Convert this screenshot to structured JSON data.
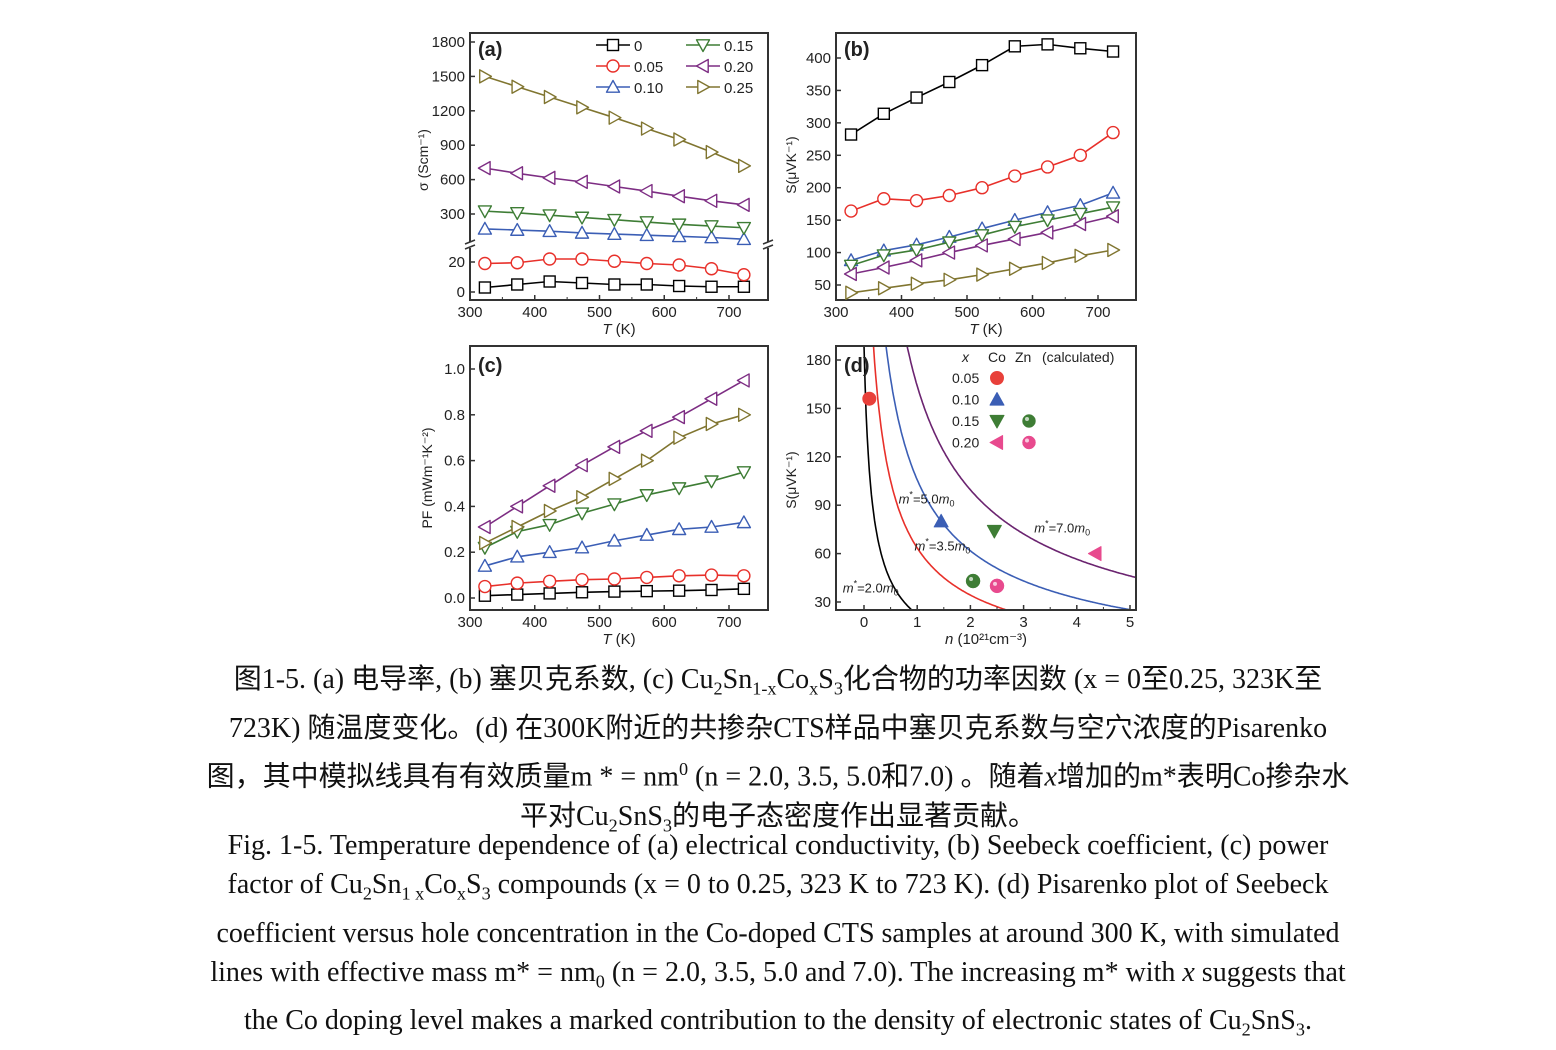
{
  "chart_data": [
    {
      "id": "a",
      "type": "line",
      "panel_label": "(a)",
      "xlabel_italic": "T",
      "xlabel_unit": " (K)",
      "ylabel": "σ (Scm⁻¹)",
      "xlim": [
        300,
        740
      ],
      "xticks": [
        300,
        400,
        500,
        600,
        700
      ],
      "axis_break": true,
      "ylim_lower": [
        0,
        28
      ],
      "ylim_upper": [
        0,
        1800
      ],
      "yticks_lower": [
        0,
        20
      ],
      "yticks_upper": [
        300,
        600,
        900,
        1200,
        1500,
        1800
      ],
      "legend": {
        "placement": "top-right",
        "columns": 2
      },
      "x": [
        323,
        373,
        423,
        473,
        523,
        573,
        623,
        673,
        723
      ],
      "series": [
        {
          "name": "0",
          "marker": "square",
          "color": "#000000",
          "segment": "lower",
          "values": [
            3,
            5,
            7,
            6,
            5,
            5,
            4,
            3.5,
            3.5
          ]
        },
        {
          "name": "0.05",
          "marker": "circle",
          "color": "#e8302a",
          "segment": "lower",
          "values": [
            19,
            19.5,
            22,
            22,
            20.5,
            19,
            18,
            15.5,
            11.5
          ]
        },
        {
          "name": "0.10",
          "marker": "triangle-up",
          "color": "#3b5eb5",
          "segment": "upper",
          "values": [
            170,
            160,
            150,
            135,
            125,
            115,
            105,
            95,
            80
          ]
        },
        {
          "name": "0.15",
          "marker": "triangle-down",
          "color": "#3e7d35",
          "segment": "upper",
          "values": [
            325,
            310,
            290,
            270,
            250,
            230,
            210,
            195,
            180
          ]
        },
        {
          "name": "0.20",
          "marker": "triangle-left",
          "color": "#7d2d83",
          "segment": "upper",
          "values": [
            700,
            655,
            615,
            580,
            540,
            500,
            455,
            415,
            380
          ]
        },
        {
          "name": "0.25",
          "marker": "triangle-right",
          "color": "#807530",
          "segment": "upper",
          "values": [
            1500,
            1410,
            1320,
            1230,
            1140,
            1045,
            950,
            840,
            720
          ]
        }
      ]
    },
    {
      "id": "b",
      "type": "line",
      "panel_label": "(b)",
      "xlabel_italic": "T",
      "xlabel_unit": " (K)",
      "ylabel": "S(μVK⁻¹)",
      "xlim": [
        300,
        740
      ],
      "ylim": [
        30,
        430
      ],
      "xticks": [
        300,
        400,
        500,
        600,
        700
      ],
      "yticks": [
        50,
        100,
        150,
        200,
        250,
        300,
        350,
        400
      ],
      "x": [
        323,
        373,
        423,
        473,
        523,
        573,
        623,
        673,
        723
      ],
      "series": [
        {
          "name": "0",
          "marker": "square",
          "color": "#000000",
          "values": [
            282,
            314,
            339,
            363,
            389,
            418,
            421,
            415,
            410
          ]
        },
        {
          "name": "0.05",
          "marker": "circle",
          "color": "#e8302a",
          "values": [
            164,
            183,
            180,
            188,
            200,
            218,
            232,
            250,
            285
          ]
        },
        {
          "name": "0.10",
          "marker": "triangle-up",
          "color": "#3b5eb5",
          "values": [
            88,
            103,
            112,
            124,
            137,
            150,
            162,
            173,
            192
          ]
        },
        {
          "name": "0.15",
          "marker": "triangle-down",
          "color": "#3e7d35",
          "values": [
            80,
            96,
            104,
            116,
            127,
            140,
            150,
            160,
            170
          ]
        },
        {
          "name": "0.20",
          "marker": "triangle-left",
          "color": "#7d2d83",
          "values": [
            67,
            77,
            88,
            100,
            111,
            121,
            131,
            144,
            156
          ]
        },
        {
          "name": "0.25",
          "marker": "triangle-right",
          "color": "#807530",
          "values": [
            38,
            45,
            52,
            58,
            66,
            75,
            84,
            95,
            104
          ]
        }
      ]
    },
    {
      "id": "c",
      "type": "line",
      "panel_label": "(c)",
      "xlabel_italic": "T",
      "xlabel_unit": " (K)",
      "ylabel": "PF (mWm⁻¹K⁻²)",
      "xlim": [
        300,
        740
      ],
      "ylim": [
        -0.05,
        1.1
      ],
      "xticks": [
        300,
        400,
        500,
        600,
        700
      ],
      "yticks": [
        0.0,
        0.2,
        0.4,
        0.6,
        0.8,
        1.0
      ],
      "x": [
        323,
        373,
        423,
        473,
        523,
        573,
        623,
        673,
        723
      ],
      "series": [
        {
          "name": "0",
          "marker": "square",
          "color": "#000000",
          "values": [
            0.01,
            0.015,
            0.02,
            0.025,
            0.028,
            0.03,
            0.032,
            0.035,
            0.04
          ]
        },
        {
          "name": "0.05",
          "marker": "circle",
          "color": "#e8302a",
          "values": [
            0.05,
            0.065,
            0.073,
            0.08,
            0.083,
            0.09,
            0.097,
            0.1,
            0.097
          ]
        },
        {
          "name": "0.10",
          "marker": "triangle-up",
          "color": "#3b5eb5",
          "values": [
            0.14,
            0.18,
            0.2,
            0.22,
            0.25,
            0.275,
            0.3,
            0.31,
            0.33
          ]
        },
        {
          "name": "0.15",
          "marker": "triangle-down",
          "color": "#3e7d35",
          "values": [
            0.22,
            0.29,
            0.32,
            0.37,
            0.41,
            0.45,
            0.48,
            0.51,
            0.55
          ]
        },
        {
          "name": "0.20",
          "marker": "triangle-left",
          "color": "#7d2d83",
          "values": [
            0.31,
            0.4,
            0.49,
            0.58,
            0.66,
            0.73,
            0.79,
            0.87,
            0.95
          ]
        },
        {
          "name": "0.25",
          "marker": "triangle-right",
          "color": "#807530",
          "values": [
            0.24,
            0.31,
            0.38,
            0.44,
            0.52,
            0.6,
            0.7,
            0.76,
            0.8
          ]
        }
      ]
    },
    {
      "id": "d",
      "type": "scatter",
      "panel_label": "(d)",
      "xlabel_italic": "n",
      "xlabel_unit": " (10²¹cm⁻³)",
      "ylabel": "S(μVK⁻¹)",
      "xlim": [
        -0.5,
        5
      ],
      "ylim": [
        25,
        185
      ],
      "xticks": [
        0,
        1,
        2,
        3,
        4,
        5
      ],
      "yticks": [
        30,
        60,
        90,
        120,
        150,
        180
      ],
      "legend": {
        "placement": "top-right",
        "header": [
          "x",
          "Co",
          "Zn",
          "(calculated)"
        ],
        "rows": [
          {
            "x": "0.05",
            "co": "circle",
            "zn": null,
            "color": "#e8403a"
          },
          {
            "x": "0.10",
            "co": "triangle-up",
            "zn": null,
            "color": "#3b5eb5"
          },
          {
            "x": "0.15",
            "co": "triangle-down",
            "zn": "sphere",
            "color": "#3e7d35"
          },
          {
            "x": "0.20",
            "co": "triangle-left",
            "zn": "sphere",
            "color": "#e84a8e"
          }
        ]
      },
      "points": [
        {
          "label": "Co 0.05",
          "marker": "circle",
          "color": "#e8403a",
          "x": 0.1,
          "y": 156
        },
        {
          "label": "Co 0.10",
          "marker": "triangle-up",
          "color": "#3b5eb5",
          "x": 1.45,
          "y": 80
        },
        {
          "label": "Co 0.15",
          "marker": "triangle-down",
          "color": "#3e7d35",
          "x": 2.45,
          "y": 74
        },
        {
          "label": "Co 0.20",
          "marker": "triangle-left",
          "color": "#e84a8e",
          "x": 4.35,
          "y": 60
        },
        {
          "label": "Zn 0.15",
          "marker": "sphere",
          "color": "#3e7d35",
          "x": 2.05,
          "y": 43
        },
        {
          "label": "Zn 0.20",
          "marker": "sphere",
          "color": "#e84a8e",
          "x": 2.5,
          "y": 40
        }
      ],
      "curves": [
        {
          "name": "m*=2.0m0",
          "label_prefix": "m*",
          "label_value": "=2.0m",
          "label_sub": "0",
          "color": "#000000",
          "k": 45,
          "x0": 0.1,
          "label_at": [
            -0.4,
            36
          ]
        },
        {
          "name": "m*=3.5m0",
          "label_prefix": "m*",
          "label_value": "=3.5m",
          "label_sub": "0",
          "color": "#e8302a",
          "k": 89,
          "x0": 0.1,
          "label_at": [
            0.95,
            62
          ]
        },
        {
          "name": "m*=5.0m0",
          "label_prefix": "m*",
          "label_value": "=5.0m",
          "label_sub": "0",
          "color": "#3b5eb5",
          "k": 134,
          "x0": 0.1,
          "label_at": [
            0.65,
            91
          ]
        },
        {
          "name": "m*=7.0m0",
          "label_prefix": "m*",
          "label_value": "=7.0m",
          "label_sub": "0",
          "color": "#6b2470",
          "k": 196,
          "x0": 0.1,
          "label_at": [
            3.2,
            73
          ]
        }
      ]
    }
  ],
  "caption_cn": {
    "lines": [
      [
        {
          "t": "图1-5. (a)  电导率, (b)  塞贝克系数, (c) Cu"
        },
        {
          "sub": "2"
        },
        {
          "t": "Sn"
        },
        {
          "sub": "1-x"
        },
        {
          "t": "Co"
        },
        {
          "sub": "x"
        },
        {
          "t": "S"
        },
        {
          "sub": "3"
        },
        {
          "t": "化合物的功率因数  (x = 0至0.25, 323K至"
        }
      ],
      [
        {
          "t": "723K)  随温度变化。(d)  在300K附近的共掺杂CTS样品中塞贝克系数与空穴浓度的Pisarenko"
        }
      ],
      [
        {
          "t": "图，其中模拟线具有有效质量m * = nm"
        },
        {
          "sup": "0"
        },
        {
          "t": " (n = 2.0, 3.5, 5.0和7.0)  。随着"
        },
        {
          "i": "x"
        },
        {
          "t": "增加的m*表明Co掺杂水"
        }
      ],
      [
        {
          "t": "平对Cu"
        },
        {
          "sub": "2"
        },
        {
          "t": "SnS"
        },
        {
          "sub": "3"
        },
        {
          "t": "的电子态密度作出显著贡献。"
        }
      ]
    ]
  },
  "caption_en": {
    "lines": [
      [
        {
          "t": "Fig. 1-5. Temperature dependence of (a) electrical conductivity, (b) Seebeck coefficient, (c) power"
        }
      ],
      [
        {
          "t": "factor of Cu"
        },
        {
          "sub": "2"
        },
        {
          "t": "Sn"
        },
        {
          "sub": "1 x"
        },
        {
          "t": "Co"
        },
        {
          "sub": "x"
        },
        {
          "t": "S"
        },
        {
          "sub": "3"
        },
        {
          "t": " compounds (x = 0 to 0.25, 323 K to 723 K). (d) Pisarenko plot of Seebeck"
        }
      ],
      [
        {
          "t": "coefficient versus hole concentration in the Co-doped CTS samples at around 300 K, with simulated"
        }
      ],
      [
        {
          "t": "lines with effective mass m* = nm"
        },
        {
          "sub": "0"
        },
        {
          "t": " (n = 2.0, 3.5, 5.0 and 7.0). The increasing m* with "
        },
        {
          "i": "x"
        },
        {
          "t": " suggests that"
        }
      ],
      [
        {
          "t": "the Co doping level makes a marked contribution to the density of electronic states of Cu"
        },
        {
          "sub": "2"
        },
        {
          "t": "SnS"
        },
        {
          "sub": "3"
        },
        {
          "t": "."
        }
      ]
    ]
  }
}
